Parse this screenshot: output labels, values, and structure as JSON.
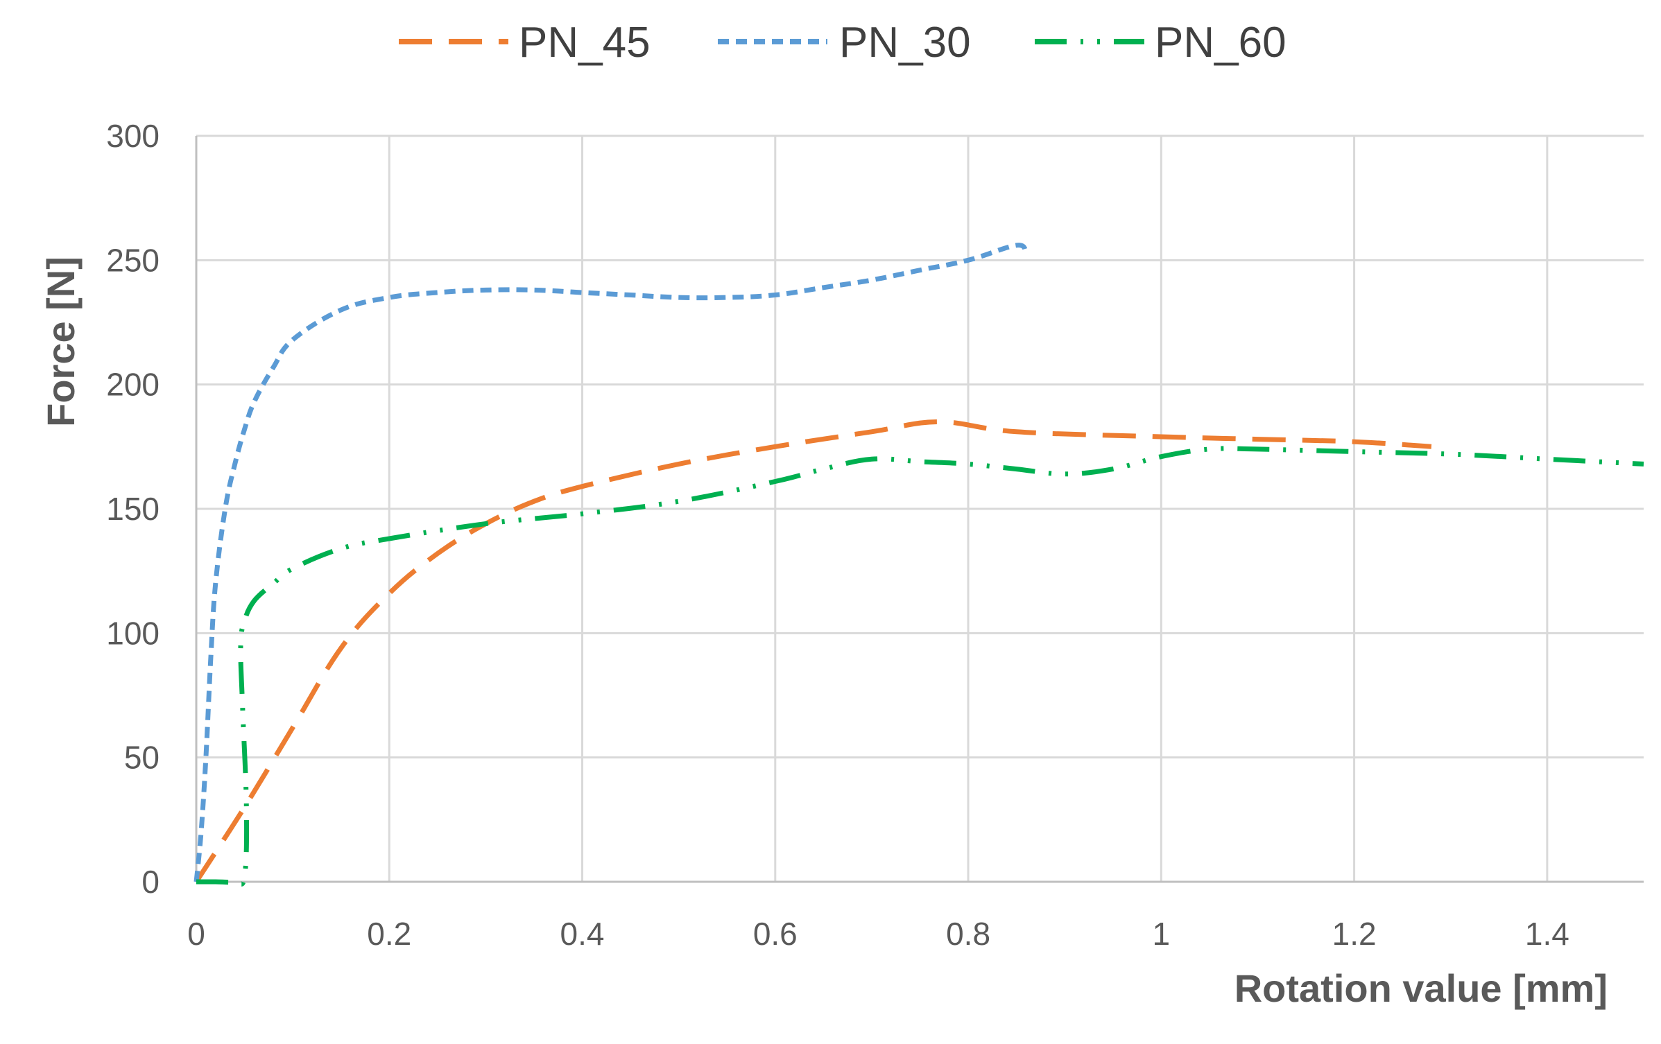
{
  "chart_data": {
    "type": "line",
    "title": "",
    "xlabel": "Rotation value [mm]",
    "ylabel": "Force [N]",
    "xlim": [
      0,
      1.5
    ],
    "ylim": [
      0,
      300
    ],
    "xticks": [
      0,
      0.2,
      0.4,
      0.6,
      0.8,
      1,
      1.2,
      1.4
    ],
    "xtick_labels": [
      "0",
      "0.2",
      "0.4",
      "0.6",
      "0.8",
      "1",
      "1.2",
      "1.4"
    ],
    "yticks": [
      0,
      50,
      100,
      150,
      200,
      250,
      300
    ],
    "ytick_labels": [
      "0",
      "50",
      "100",
      "150",
      "200",
      "250",
      "300"
    ],
    "grid": true,
    "legend_position": "top-center",
    "series": [
      {
        "name": "PN_45",
        "color": "#ED7D31",
        "dash": "long-dash",
        "x": [
          0,
          0.05,
          0.1,
          0.15,
          0.2,
          0.25,
          0.3,
          0.35,
          0.4,
          0.5,
          0.6,
          0.7,
          0.77,
          0.85,
          1.0,
          1.1,
          1.2,
          1.28
        ],
        "y": [
          0,
          30,
          62,
          94,
          116,
          132,
          144,
          153,
          159,
          168,
          175,
          181,
          185,
          181,
          179,
          178,
          177,
          175
        ]
      },
      {
        "name": "PN_30",
        "color": "#5B9BD5",
        "dash": "short-dash",
        "x": [
          0,
          0.005,
          0.01,
          0.015,
          0.02,
          0.03,
          0.04,
          0.05,
          0.06,
          0.08,
          0.1,
          0.15,
          0.2,
          0.25,
          0.3,
          0.35,
          0.4,
          0.45,
          0.5,
          0.55,
          0.6,
          0.65,
          0.7,
          0.75,
          0.8,
          0.85,
          0.86
        ],
        "y": [
          0,
          20,
          50,
          90,
          120,
          150,
          168,
          182,
          193,
          207,
          218,
          230,
          235,
          237,
          238,
          238,
          237,
          236,
          235,
          235,
          236,
          239,
          242,
          246,
          250,
          256,
          253
        ]
      },
      {
        "name": "PN_60",
        "color": "#00B050",
        "dash": "dash-dot-dot",
        "x": [
          0,
          0.02,
          0.04,
          0.05,
          0.052,
          0.048,
          0.046,
          0.05,
          0.06,
          0.08,
          0.1,
          0.15,
          0.2,
          0.3,
          0.4,
          0.5,
          0.6,
          0.65,
          0.7,
          0.75,
          0.8,
          0.85,
          0.9,
          0.95,
          1.0,
          1.05,
          1.1,
          1.2,
          1.3,
          1.4,
          1.5
        ],
        "y": [
          0,
          0,
          0,
          2,
          30,
          70,
          95,
          105,
          113,
          120,
          126,
          134,
          138,
          144,
          148,
          153,
          161,
          166,
          170,
          169,
          168,
          166,
          164,
          166,
          171,
          174,
          174,
          173,
          172,
          170,
          168
        ]
      }
    ]
  }
}
